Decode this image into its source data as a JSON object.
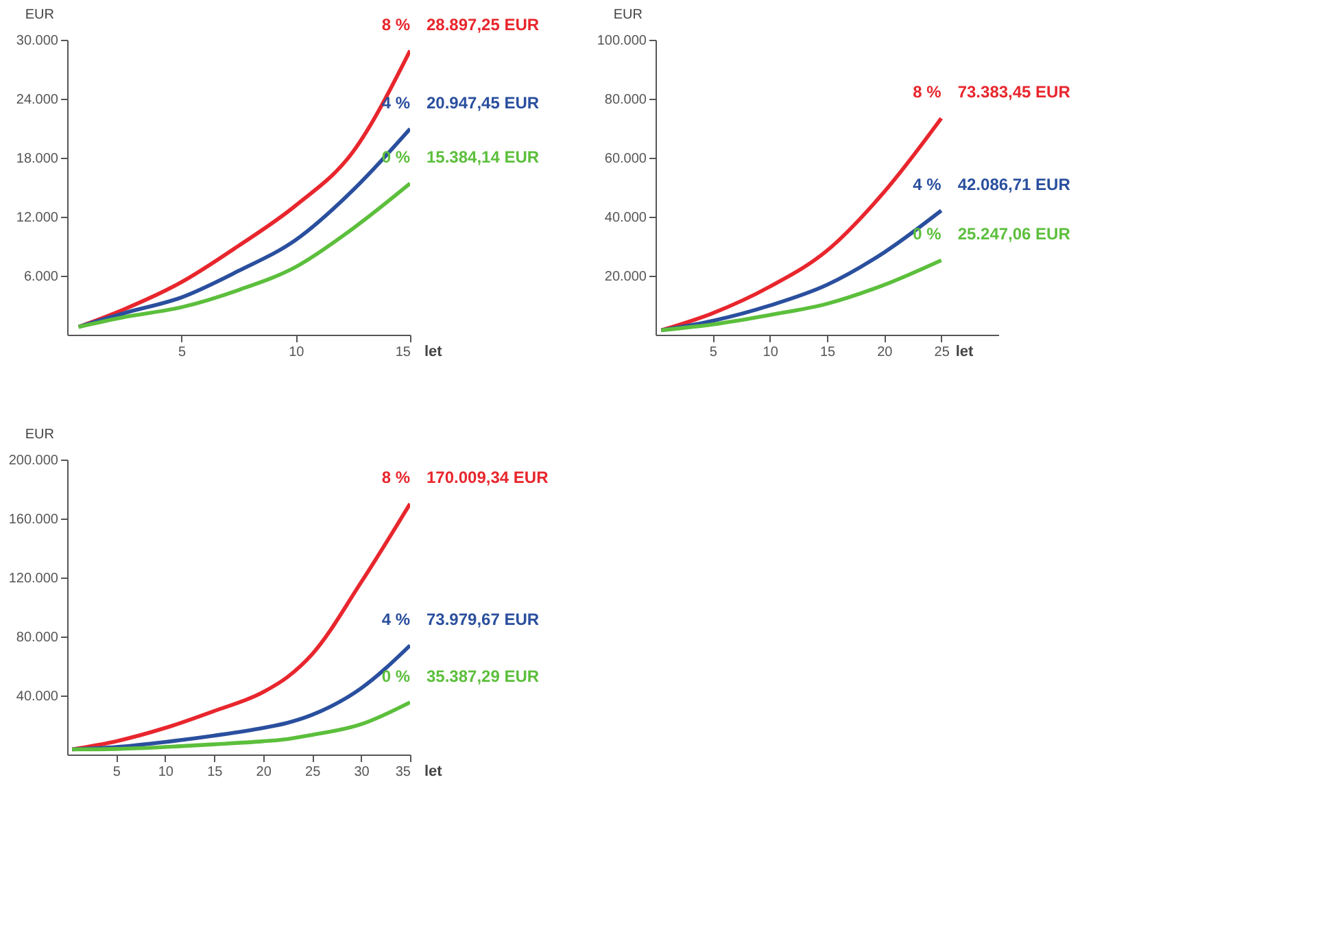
{
  "chart_data": [
    {
      "type": "line",
      "xlabel": "let",
      "ylabel": "EUR",
      "x": [
        0.5,
        2.5,
        5,
        7.5,
        10,
        12.5,
        15
      ],
      "xlim": [
        0,
        15
      ],
      "xticks": [
        5,
        10,
        15
      ],
      "ylim": [
        0,
        30000
      ],
      "yticks": [
        {
          "value": 6000,
          "label": "6.000"
        },
        {
          "value": 12000,
          "label": "12.000"
        },
        {
          "value": 18000,
          "label": "18.000"
        },
        {
          "value": 24000,
          "label": "24.000"
        },
        {
          "value": 30000,
          "label": "30.000"
        }
      ],
      "grid": false,
      "series": [
        {
          "name": "8 %",
          "color": "#e8262d",
          "values": [
            800,
            2600,
            5350,
            9050,
            13150,
            18600,
            28897.25
          ],
          "value_labels": [
            null,
            null,
            null,
            null,
            null,
            null,
            "28.897,25 EUR"
          ]
        },
        {
          "name": "4 %",
          "color": "#2a4f9e",
          "values": [
            800,
            2200,
            3800,
            6500,
            9650,
            14700,
            20947.45
          ],
          "value_labels": [
            null,
            null,
            null,
            null,
            null,
            null,
            "20.947,45 EUR"
          ]
        },
        {
          "name": "0 %",
          "color": "#5cbf3c",
          "values": [
            800,
            1800,
            2800,
            4550,
            6900,
            10800,
            15384.14
          ],
          "value_labels": [
            null,
            null,
            null,
            null,
            null,
            null,
            "15.384,14 EUR"
          ]
        }
      ]
    },
    {
      "type": "line",
      "xlabel": "let",
      "ylabel": "EUR",
      "x": [
        0.5,
        5,
        10,
        15,
        20,
        25
      ],
      "xlim": [
        0,
        30
      ],
      "xticks": [
        5,
        10,
        15,
        20,
        25
      ],
      "ylim": [
        0,
        100000
      ],
      "yticks": [
        {
          "value": 20000,
          "label": "20.000"
        },
        {
          "value": 40000,
          "label": "40.000"
        },
        {
          "value": 60000,
          "label": "60.000"
        },
        {
          "value": 80000,
          "label": "80.000"
        },
        {
          "value": 100000,
          "label": "100.000"
        }
      ],
      "grid": false,
      "series": [
        {
          "name": "8 %",
          "color": "#e8262d",
          "values": [
            1500,
            7300,
            16300,
            28500,
            48400,
            73383.45
          ],
          "value_labels": [
            null,
            null,
            null,
            null,
            null,
            "73.383,45 EUR"
          ]
        },
        {
          "name": "4 %",
          "color": "#2a4f9e",
          "values": [
            1500,
            4700,
            9900,
            16900,
            27900,
            42086.71
          ],
          "value_labels": [
            null,
            null,
            null,
            null,
            null,
            "42.086,71 EUR"
          ]
        },
        {
          "name": "0 %",
          "color": "#5cbf3c",
          "values": [
            1500,
            3500,
            6700,
            10500,
            16900,
            25247.06
          ],
          "value_labels": [
            null,
            null,
            null,
            null,
            null,
            "25.247,06 EUR"
          ]
        }
      ]
    },
    {
      "type": "line",
      "xlabel": "let",
      "ylabel": "EUR",
      "x": [
        0.5,
        5,
        10,
        15,
        20,
        22.5,
        25,
        30,
        35
      ],
      "xlim": [
        0,
        35
      ],
      "xticks": [
        5,
        10,
        15,
        20,
        25,
        30,
        35
      ],
      "ylim": [
        0,
        200000
      ],
      "yticks": [
        {
          "value": 40000,
          "label": "40.000"
        },
        {
          "value": 80000,
          "label": "80.000"
        },
        {
          "value": 120000,
          "label": "120.000"
        },
        {
          "value": 160000,
          "label": "160.000"
        },
        {
          "value": 200000,
          "label": "200.000"
        }
      ],
      "grid": false,
      "series": [
        {
          "name": "8 %",
          "color": "#e8262d",
          "values": [
            3500,
            9000,
            18000,
            29500,
            42300,
            52600,
            68000,
            116700,
            170009.34
          ],
          "value_labels": [
            null,
            null,
            null,
            null,
            null,
            null,
            null,
            null,
            "170.009,34 EUR"
          ]
        },
        {
          "name": "4 %",
          "color": "#2a4f9e",
          "values": [
            3500,
            5100,
            8500,
            12800,
            18000,
            21500,
            26900,
            44900,
            73979.67
          ],
          "value_labels": [
            null,
            null,
            null,
            null,
            null,
            null,
            null,
            null,
            "73.979,67 EUR"
          ]
        },
        {
          "name": "0 %",
          "color": "#5cbf3c",
          "values": [
            3500,
            3800,
            5100,
            6900,
            9000,
            10500,
            13300,
            20500,
            35387.29
          ],
          "value_labels": [
            null,
            null,
            null,
            null,
            null,
            null,
            null,
            null,
            "35.387,29 EUR"
          ]
        }
      ]
    }
  ]
}
